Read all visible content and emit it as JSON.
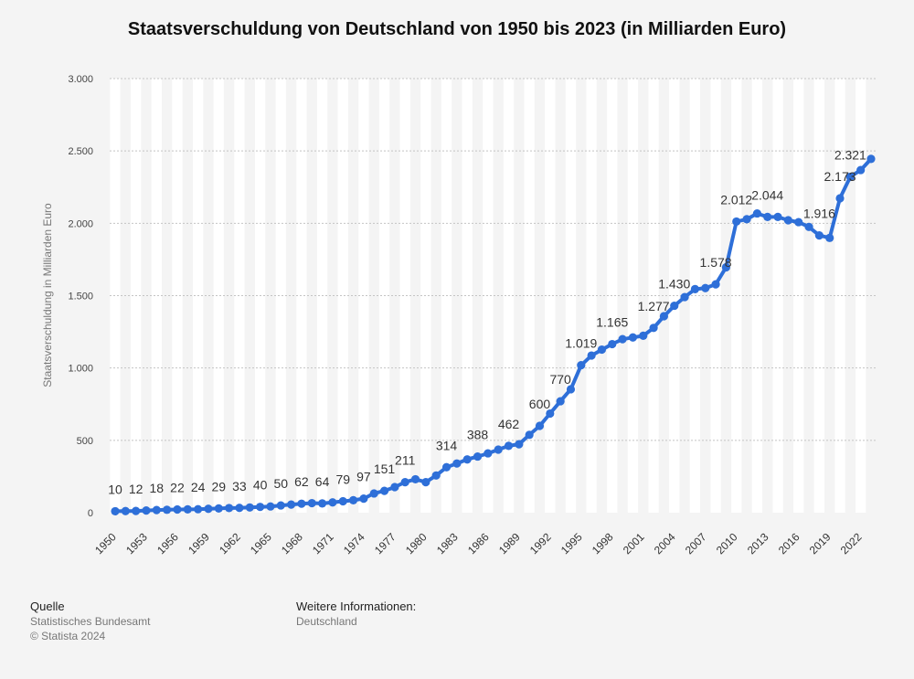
{
  "chart_data": {
    "type": "line",
    "title": "Staatsverschuldung von Deutschland von 1950 bis 2023 (in Milliarden Euro)",
    "ylabel": "Staatsverschuldung in Milliarden Euro",
    "xlabel": "",
    "ylim": [
      0,
      3000
    ],
    "yticks": [
      0,
      500,
      1000,
      1500,
      2000,
      2500,
      3000
    ],
    "ytick_labels": [
      "0",
      "500",
      "1.000",
      "1.500",
      "2.000",
      "2.500",
      "3.000"
    ],
    "xtick_years": [
      1950,
      1953,
      1956,
      1959,
      1962,
      1965,
      1968,
      1971,
      1974,
      1977,
      1980,
      1983,
      1986,
      1989,
      1992,
      1995,
      1998,
      2001,
      2004,
      2007,
      2010,
      2013,
      2016,
      2019,
      2022
    ],
    "xtick_labels": [
      "1950",
      "1953",
      "1956",
      "1959",
      "1962",
      "1965",
      "1968",
      "1971",
      "1974",
      "1977",
      "1980",
      "1983",
      "1986",
      "1989",
      "1992",
      "1995",
      "1998",
      "2001",
      "2004",
      "2007",
      "2010",
      "2013",
      "2016",
      "2019",
      "2022"
    ],
    "series": [
      {
        "name": "Staatsverschuldung",
        "color": "#2e6fd8",
        "x": [
          1950,
          1951,
          1952,
          1953,
          1954,
          1955,
          1956,
          1957,
          1958,
          1959,
          1960,
          1961,
          1962,
          1963,
          1964,
          1965,
          1966,
          1967,
          1968,
          1969,
          1970,
          1971,
          1972,
          1973,
          1974,
          1975,
          1976,
          1977,
          1978,
          1979,
          1980,
          1981,
          1982,
          1983,
          1984,
          1985,
          1986,
          1987,
          1988,
          1989,
          1990,
          1991,
          1992,
          1993,
          1994,
          1995,
          1996,
          1997,
          1998,
          1999,
          2000,
          2001,
          2002,
          2003,
          2004,
          2005,
          2006,
          2007,
          2008,
          2009,
          2010,
          2011,
          2012,
          2013,
          2014,
          2015,
          2016,
          2017,
          2018,
          2019,
          2020,
          2021,
          2022,
          2023
        ],
        "values": [
          10,
          11,
          12,
          15,
          18,
          20,
          22,
          23,
          24,
          27,
          29,
          32,
          33,
          36,
          40,
          43,
          50,
          56,
          62,
          66,
          64,
          71,
          79,
          86,
          97,
          133,
          151,
          177,
          211,
          231,
          211,
          257,
          314,
          340,
          368,
          388,
          410,
          436,
          462,
          473,
          538,
          600,
          685,
          770,
          853,
          1019,
          1086,
          1127,
          1165,
          1199,
          1211,
          1223,
          1277,
          1358,
          1430,
          1490,
          1545,
          1552,
          1578,
          1696,
          2012,
          2028,
          2068,
          2044,
          2044,
          2021,
          2008,
          1975,
          1916,
          1899,
          2173,
          2321,
          2368,
          2445
        ],
        "labels": [
          {
            "year": 1950,
            "text": "10"
          },
          {
            "year": 1952,
            "text": "12"
          },
          {
            "year": 1954,
            "text": "18"
          },
          {
            "year": 1956,
            "text": "22"
          },
          {
            "year": 1958,
            "text": "24"
          },
          {
            "year": 1960,
            "text": "29"
          },
          {
            "year": 1962,
            "text": "33"
          },
          {
            "year": 1964,
            "text": "40"
          },
          {
            "year": 1966,
            "text": "50"
          },
          {
            "year": 1968,
            "text": "62"
          },
          {
            "year": 1970,
            "text": "64"
          },
          {
            "year": 1972,
            "text": "79"
          },
          {
            "year": 1974,
            "text": "97"
          },
          {
            "year": 1976,
            "text": "151"
          },
          {
            "year": 1978,
            "text": "211"
          },
          {
            "year": 1982,
            "text": "314"
          },
          {
            "year": 1985,
            "text": "388"
          },
          {
            "year": 1988,
            "text": "462"
          },
          {
            "year": 1991,
            "text": "600"
          },
          {
            "year": 1993,
            "text": "770"
          },
          {
            "year": 1995,
            "text": "1.019"
          },
          {
            "year": 1998,
            "text": "1.165"
          },
          {
            "year": 2002,
            "text": "1.277"
          },
          {
            "year": 2004,
            "text": "1.430"
          },
          {
            "year": 2008,
            "text": "1.578"
          },
          {
            "year": 2010,
            "text": "2.012"
          },
          {
            "year": 2013,
            "text": "2.044"
          },
          {
            "year": 2018,
            "text": "1.916"
          },
          {
            "year": 2020,
            "text": "2.173"
          },
          {
            "year": 2021,
            "text": "2.321"
          }
        ]
      }
    ]
  },
  "footer": {
    "source_heading": "Quelle",
    "source_lines": [
      "Statistisches Bundesamt",
      "© Statista 2024"
    ],
    "info_heading": "Weitere Informationen:",
    "info_lines": [
      "Deutschland"
    ]
  }
}
